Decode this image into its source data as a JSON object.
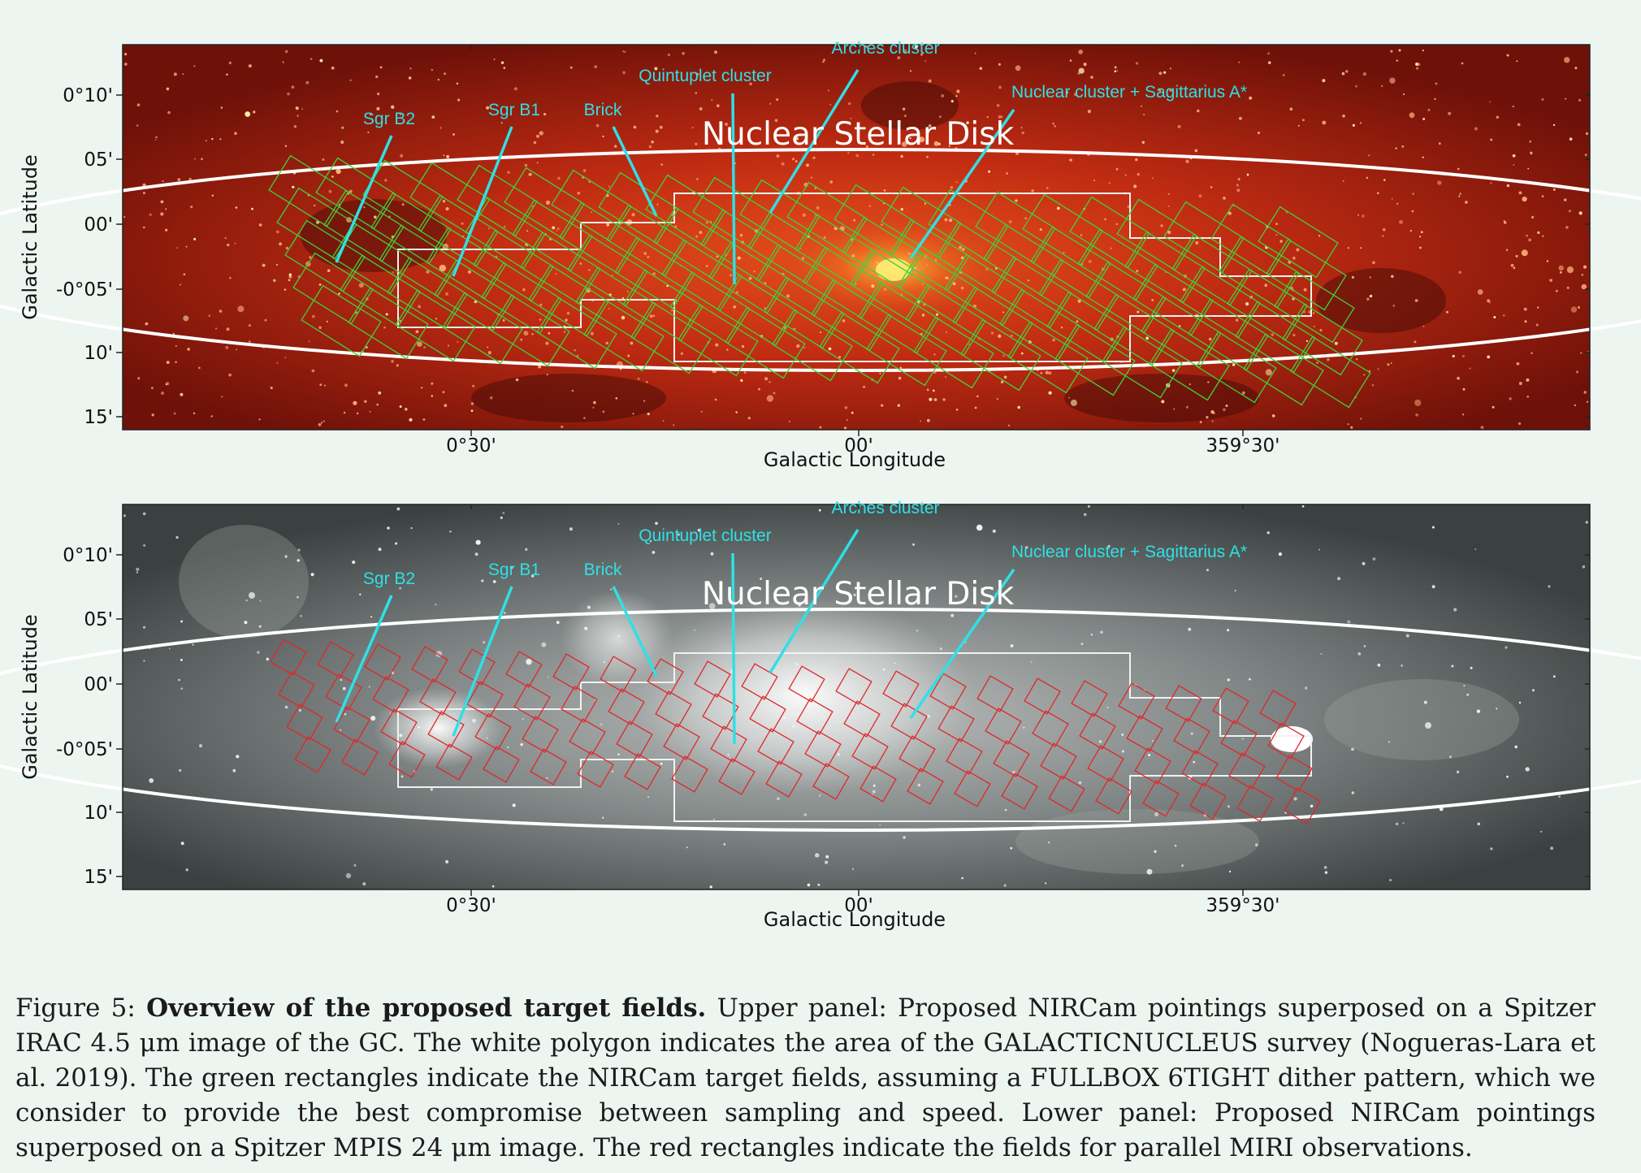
{
  "panels": [
    {
      "id": "upper",
      "image": "Spitzer IRAC 4.5 micron",
      "y_ticks": [
        "0°10'",
        "05'",
        "00'",
        "-0°05'",
        "10'",
        "15'"
      ],
      "x_ticks": [
        "0°30'",
        "00'",
        "359°30'"
      ],
      "xlabel": "Galactic Longitude",
      "ylabel": "Galactic Latitude",
      "region_label": "Nuclear Stellar Disk",
      "annotations": [
        "Sgr B2",
        "Sgr B1",
        "Brick",
        "Quintuplet cluster",
        "Arches cluster",
        "Nuclear cluster + Sagittarius A*"
      ],
      "field_color": "#3fd13a"
    },
    {
      "id": "lower",
      "image": "Spitzer MIPS 24 micron",
      "y_ticks": [
        "0°10'",
        "05'",
        "00'",
        "-0°05'",
        "10'",
        "15'"
      ],
      "x_ticks": [
        "0°30'",
        "00'",
        "359°30'"
      ],
      "xlabel": "Galactic Longitude",
      "ylabel": "Galactic Latitude",
      "region_label": "Nuclear Stellar Disk",
      "annotations": [
        "Sgr B2",
        "Sgr B1",
        "Brick",
        "Quintuplet cluster",
        "Arches cluster",
        "Nuclear cluster + Sagittarius A*"
      ],
      "field_color": "#e0272a"
    }
  ],
  "annotation_color": "#2fe0e6",
  "caption": {
    "label": "Figure 5: ",
    "title": "Overview of the proposed target fields.",
    "text": " Upper panel: Proposed NIRCam pointings superposed on a Spitzer IRAC 4.5 μm image of the GC. The white polygon indicates the area of the GALACTICNUCLEUS survey (Nogueras-Lara et al. 2019). The green rectangles indicate the NIRCam target fields, assuming a FULLBOX 6TIGHT dither pattern, which we consider to provide the best compromise between sampling and speed. Lower panel: Proposed NIRCam pointings superposed on a Spitzer MPIS 24 μm image. The red rectangles indicate the fields for parallel MIRI observations."
  }
}
